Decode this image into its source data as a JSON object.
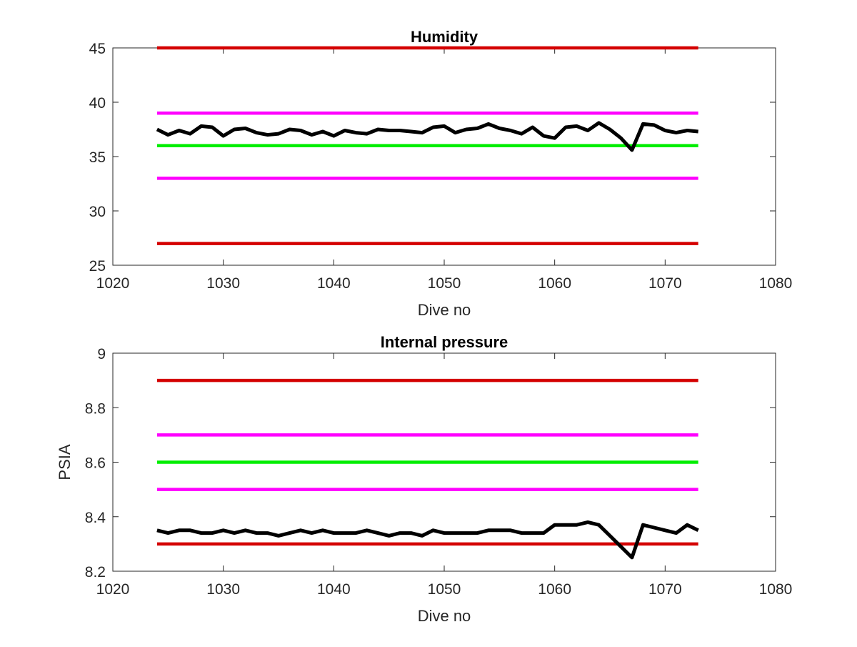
{
  "chart_data": [
    {
      "type": "line",
      "title": "Humidity",
      "xlabel": "Dive no",
      "ylabel": "",
      "xlim": [
        1020,
        1080
      ],
      "ylim": [
        25,
        45
      ],
      "xticks": [
        1020,
        1030,
        1040,
        1050,
        1060,
        1070,
        1080
      ],
      "yticks": [
        25,
        30,
        35,
        40,
        45
      ],
      "grid": false,
      "legend": "none",
      "series": [
        {
          "color": "#d40000",
          "x": [
            1024,
            1073
          ],
          "values": [
            45,
            45
          ]
        },
        {
          "color": "#ff00ff",
          "x": [
            1024,
            1073
          ],
          "values": [
            39,
            39
          ]
        },
        {
          "color": "#00ee00",
          "x": [
            1024,
            1073
          ],
          "values": [
            36,
            36
          ]
        },
        {
          "color": "#ff00ff",
          "x": [
            1024,
            1073
          ],
          "values": [
            33,
            33
          ]
        },
        {
          "color": "#d40000",
          "x": [
            1024,
            1073
          ],
          "values": [
            27,
            27
          ]
        },
        {
          "color": "#000000",
          "x": [
            1024,
            1025,
            1026,
            1027,
            1028,
            1029,
            1030,
            1031,
            1032,
            1033,
            1034,
            1035,
            1036,
            1037,
            1038,
            1039,
            1040,
            1041,
            1042,
            1043,
            1044,
            1045,
            1046,
            1047,
            1048,
            1049,
            1050,
            1051,
            1052,
            1053,
            1054,
            1055,
            1056,
            1057,
            1058,
            1059,
            1060,
            1061,
            1062,
            1063,
            1064,
            1065,
            1066,
            1067,
            1068,
            1069,
            1070,
            1071,
            1072,
            1073
          ],
          "values": [
            37.5,
            37.0,
            37.4,
            37.1,
            37.8,
            37.7,
            36.9,
            37.5,
            37.6,
            37.2,
            37.0,
            37.1,
            37.5,
            37.4,
            37.0,
            37.3,
            36.9,
            37.4,
            37.2,
            37.1,
            37.5,
            37.4,
            37.4,
            37.3,
            37.2,
            37.7,
            37.8,
            37.2,
            37.5,
            37.6,
            38.0,
            37.6,
            37.4,
            37.1,
            37.7,
            36.9,
            36.7,
            37.7,
            37.8,
            37.4,
            38.1,
            37.5,
            36.7,
            35.6,
            38.0,
            37.9,
            37.4,
            37.2,
            37.4,
            37.3
          ]
        }
      ]
    },
    {
      "type": "line",
      "title": "Internal pressure",
      "xlabel": "Dive no",
      "ylabel": "PSIA",
      "xlim": [
        1020,
        1080
      ],
      "ylim": [
        8.2,
        9.0
      ],
      "xticks": [
        1020,
        1030,
        1040,
        1050,
        1060,
        1070,
        1080
      ],
      "yticks": [
        8.2,
        8.4,
        8.6,
        8.8,
        9
      ],
      "ytick_labels": [
        "8.2",
        "8.4",
        "8.6",
        "8.8",
        "9"
      ],
      "grid": false,
      "legend": "none",
      "series": [
        {
          "color": "#d40000",
          "x": [
            1024,
            1073
          ],
          "values": [
            8.9,
            8.9
          ]
        },
        {
          "color": "#ff00ff",
          "x": [
            1024,
            1073
          ],
          "values": [
            8.7,
            8.7
          ]
        },
        {
          "color": "#00ee00",
          "x": [
            1024,
            1073
          ],
          "values": [
            8.6,
            8.6
          ]
        },
        {
          "color": "#ff00ff",
          "x": [
            1024,
            1073
          ],
          "values": [
            8.5,
            8.5
          ]
        },
        {
          "color": "#d40000",
          "x": [
            1024,
            1073
          ],
          "values": [
            8.3,
            8.3
          ]
        },
        {
          "color": "#000000",
          "x": [
            1024,
            1025,
            1026,
            1027,
            1028,
            1029,
            1030,
            1031,
            1032,
            1033,
            1034,
            1035,
            1036,
            1037,
            1038,
            1039,
            1040,
            1041,
            1042,
            1043,
            1044,
            1045,
            1046,
            1047,
            1048,
            1049,
            1050,
            1051,
            1052,
            1053,
            1054,
            1055,
            1056,
            1057,
            1058,
            1059,
            1060,
            1061,
            1062,
            1063,
            1064,
            1065,
            1066,
            1067,
            1068,
            1069,
            1070,
            1071,
            1072,
            1073
          ],
          "values": [
            8.35,
            8.34,
            8.35,
            8.35,
            8.34,
            8.34,
            8.35,
            8.34,
            8.35,
            8.34,
            8.34,
            8.33,
            8.34,
            8.35,
            8.34,
            8.35,
            8.34,
            8.34,
            8.34,
            8.35,
            8.34,
            8.33,
            8.34,
            8.34,
            8.33,
            8.35,
            8.34,
            8.34,
            8.34,
            8.34,
            8.35,
            8.35,
            8.35,
            8.34,
            8.34,
            8.34,
            8.37,
            8.37,
            8.37,
            8.38,
            8.37,
            8.33,
            8.29,
            8.25,
            8.37,
            8.36,
            8.35,
            8.34,
            8.37,
            8.35
          ]
        }
      ]
    }
  ]
}
